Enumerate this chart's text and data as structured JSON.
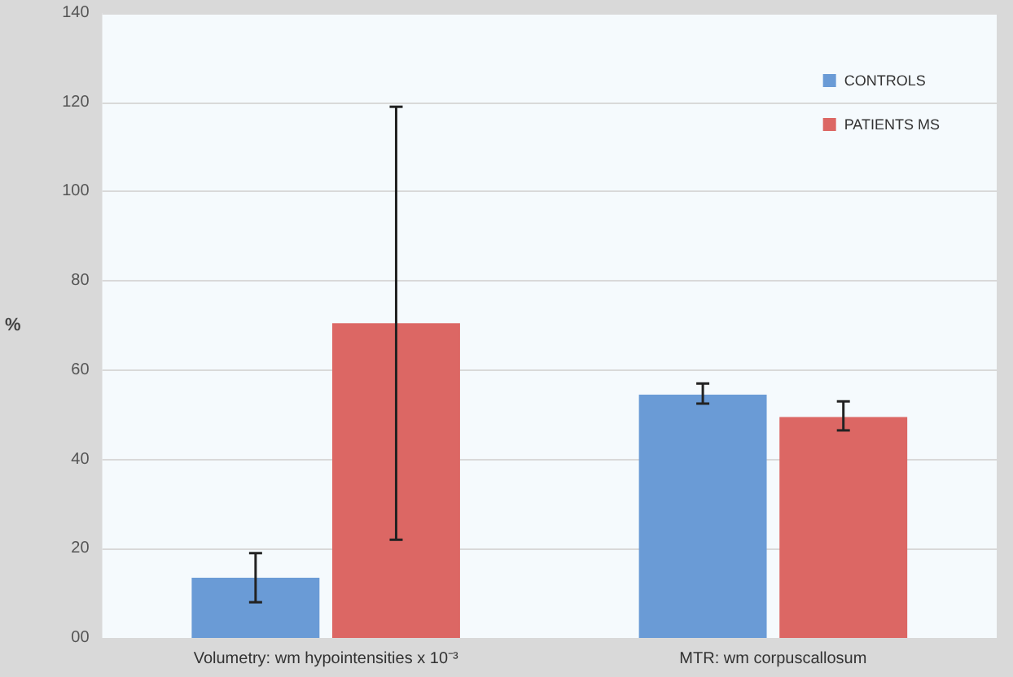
{
  "chart_data": {
    "type": "bar",
    "ylabel": "%",
    "categories": [
      "Volumetry: wm hypointensities x 10⁻³",
      "MTR: wm corpuscallosum"
    ],
    "series": [
      {
        "name": "CONTROLS",
        "color": "#6a9bd6",
        "values": [
          13.5,
          54.5
        ],
        "errors": [
          [
            8,
            19
          ],
          [
            52.5,
            57
          ]
        ]
      },
      {
        "name": "PATIENTS MS",
        "color": "#dc6764",
        "values": [
          70.5,
          49.5
        ],
        "errors": [
          [
            22,
            119
          ],
          [
            46.5,
            53
          ]
        ]
      }
    ],
    "ylim": [
      0,
      140
    ],
    "yticks": [
      {
        "value": 0,
        "label": "00"
      },
      20,
      40,
      60,
      80,
      100,
      120,
      140
    ],
    "grid": "y",
    "legend": "top right"
  }
}
